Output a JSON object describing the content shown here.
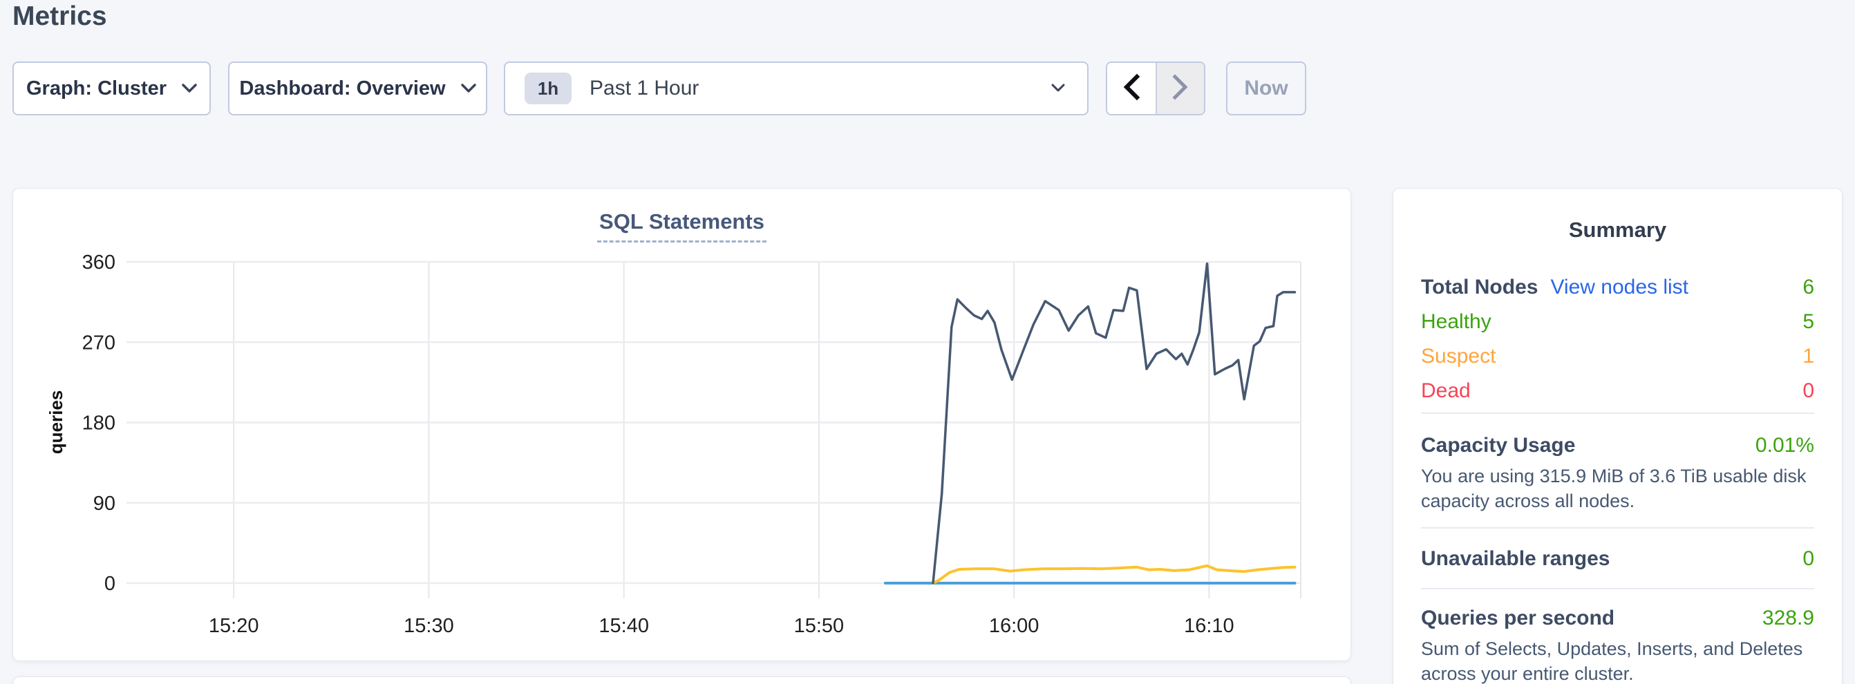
{
  "page": {
    "title": "Metrics"
  },
  "toolbar": {
    "graph_label": "Graph: Cluster",
    "dashboard_label": "Dashboard: Overview",
    "time_badge": "1h",
    "time_label": "Past 1 Hour",
    "now_label": "Now"
  },
  "summary": {
    "title": "Summary",
    "nodes": {
      "total_label": "Total Nodes",
      "link": "View nodes list",
      "total_value": "6",
      "healthy_label": "Healthy",
      "healthy_value": "5",
      "suspect_label": "Suspect",
      "suspect_value": "1",
      "dead_label": "Dead",
      "dead_value": "0"
    },
    "capacity": {
      "label": "Capacity Usage",
      "value": "0.01%",
      "desc": "You are using 315.9 MiB of 3.6 TiB usable disk capacity across all nodes."
    },
    "unavailable": {
      "label": "Unavailable ranges",
      "value": "0"
    },
    "qps": {
      "label": "Queries per second",
      "value": "328.9",
      "desc": "Sum of Selects, Updates, Inserts, and Deletes across your entire cluster."
    }
  },
  "colors": {
    "green": "#3ba30c",
    "orange": "#ffa43d",
    "red": "#f74455",
    "link_blue": "#2a66e8",
    "page_bg": "#f4f6fa",
    "series_dark": "#475872",
    "series_yellow": "#fdc32d",
    "series_blue": "#4c9fd8"
  },
  "chart_data": {
    "type": "line",
    "title": "SQL Statements",
    "ylabel": "queries",
    "xlabel": "",
    "x_unit": "minutes after 15:00",
    "xlim": [
      14.5,
      74.7
    ],
    "ylim": [
      0,
      360
    ],
    "grid": true,
    "legend": "none",
    "y_ticks": [
      0,
      90,
      180,
      270,
      360
    ],
    "x_ticks": [
      {
        "t": 20,
        "label": "15:20"
      },
      {
        "t": 30,
        "label": "15:30"
      },
      {
        "t": 40,
        "label": "15:40"
      },
      {
        "t": 50,
        "label": "15:50"
      },
      {
        "t": 60,
        "label": "16:00"
      },
      {
        "t": 70,
        "label": "16:10"
      }
    ],
    "series": [
      {
        "name": "series-1-dark-slate",
        "color": "#475872",
        "width": 3.5,
        "points": [
          [
            55.85,
            0
          ],
          [
            56.3,
            100
          ],
          [
            56.8,
            287
          ],
          [
            57.1,
            318
          ],
          [
            57.55,
            308
          ],
          [
            57.95,
            300
          ],
          [
            58.35,
            296
          ],
          [
            58.65,
            305
          ],
          [
            59.0,
            292
          ],
          [
            59.35,
            262
          ],
          [
            59.9,
            228
          ],
          [
            60.5,
            262
          ],
          [
            61.0,
            290
          ],
          [
            61.6,
            316
          ],
          [
            62.3,
            306
          ],
          [
            62.8,
            283
          ],
          [
            63.3,
            300
          ],
          [
            63.8,
            310
          ],
          [
            64.2,
            280
          ],
          [
            64.7,
            275
          ],
          [
            65.1,
            306
          ],
          [
            65.6,
            305
          ],
          [
            65.9,
            331
          ],
          [
            66.3,
            328
          ],
          [
            66.8,
            240
          ],
          [
            67.3,
            257
          ],
          [
            67.8,
            262
          ],
          [
            68.3,
            251
          ],
          [
            68.6,
            257
          ],
          [
            68.9,
            245
          ],
          [
            69.2,
            262
          ],
          [
            69.5,
            281
          ],
          [
            69.9,
            358
          ],
          [
            70.3,
            234
          ],
          [
            70.8,
            240
          ],
          [
            71.2,
            244
          ],
          [
            71.5,
            250
          ],
          [
            71.8,
            206
          ],
          [
            72.3,
            266
          ],
          [
            72.6,
            271
          ],
          [
            72.9,
            286
          ],
          [
            73.3,
            288
          ],
          [
            73.5,
            322
          ],
          [
            73.8,
            326
          ],
          [
            74.4,
            326
          ]
        ]
      },
      {
        "name": "series-2-yellow",
        "color": "#fdc32d",
        "width": 4,
        "points": [
          [
            55.85,
            0
          ],
          [
            56.2,
            4
          ],
          [
            56.7,
            12
          ],
          [
            57.2,
            15.5
          ],
          [
            58.0,
            16
          ],
          [
            59.0,
            16
          ],
          [
            59.8,
            13.5
          ],
          [
            60.5,
            15
          ],
          [
            61.5,
            16
          ],
          [
            62.5,
            16
          ],
          [
            63.5,
            16.5
          ],
          [
            64.5,
            16
          ],
          [
            65.5,
            17
          ],
          [
            66.3,
            18
          ],
          [
            66.9,
            15
          ],
          [
            67.5,
            15.5
          ],
          [
            68.2,
            14
          ],
          [
            69.0,
            15
          ],
          [
            69.9,
            19.5
          ],
          [
            70.4,
            15
          ],
          [
            71.0,
            14
          ],
          [
            71.8,
            13
          ],
          [
            72.5,
            15
          ],
          [
            73.2,
            16.5
          ],
          [
            73.8,
            17.5
          ],
          [
            74.4,
            18
          ]
        ]
      },
      {
        "name": "series-3-blue",
        "color": "#4c9fd8",
        "width": 4,
        "points": [
          [
            53.4,
            0
          ],
          [
            74.4,
            0
          ]
        ]
      }
    ]
  }
}
